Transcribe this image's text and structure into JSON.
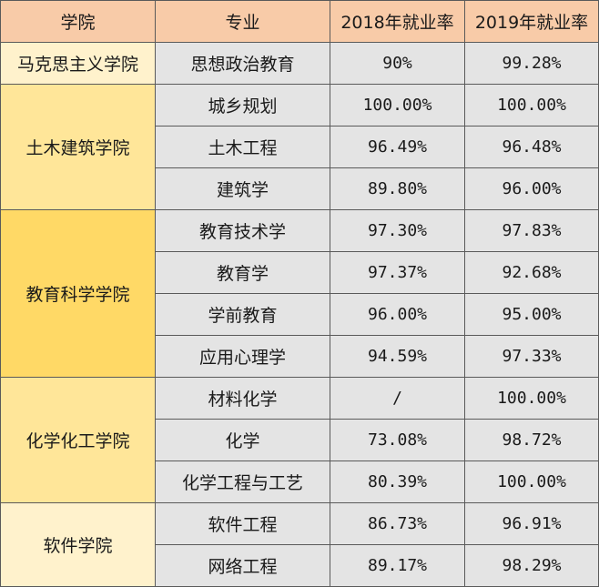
{
  "headers": [
    "学院",
    "专业",
    "2018年就业率",
    "2019年就业率"
  ],
  "colleges": [
    {
      "name": "马克思主义学院",
      "bg": "#fff2cc",
      "majors": [
        {
          "name": "思想政治教育",
          "y2018": "90%",
          "y2019": "99.28%"
        }
      ]
    },
    {
      "name": "土木建筑学院",
      "bg": "#ffe699",
      "majors": [
        {
          "name": "城乡规划",
          "y2018": "100.00%",
          "y2019": "100.00%"
        },
        {
          "name": "土木工程",
          "y2018": "96.49%",
          "y2019": "96.48%"
        },
        {
          "name": "建筑学",
          "y2018": "89.80%",
          "y2019": "96.00%"
        }
      ]
    },
    {
      "name": "教育科学学院",
      "bg": "#ffd966",
      "majors": [
        {
          "name": "教育技术学",
          "y2018": "97.30%",
          "y2019": "97.83%"
        },
        {
          "name": "教育学",
          "y2018": "97.37%",
          "y2019": "92.68%"
        },
        {
          "name": "学前教育",
          "y2018": "96.00%",
          "y2019": "95.00%"
        },
        {
          "name": "应用心理学",
          "y2018": "94.59%",
          "y2019": "97.33%"
        }
      ]
    },
    {
      "name": "化学化工学院",
      "bg": "#ffe699",
      "majors": [
        {
          "name": "材料化学",
          "y2018": "/",
          "y2019": "100.00%"
        },
        {
          "name": "化学",
          "y2018": "73.08%",
          "y2019": "98.72%"
        },
        {
          "name": "化学工程与工艺",
          "y2018": "80.39%",
          "y2019": "100.00%"
        }
      ]
    },
    {
      "name": "软件学院",
      "bg": "#fff2cc",
      "majors": [
        {
          "name": "软件工程",
          "y2018": "86.73%",
          "y2019": "96.91%"
        },
        {
          "name": "网络工程",
          "y2018": "89.17%",
          "y2019": "98.29%"
        }
      ]
    }
  ]
}
